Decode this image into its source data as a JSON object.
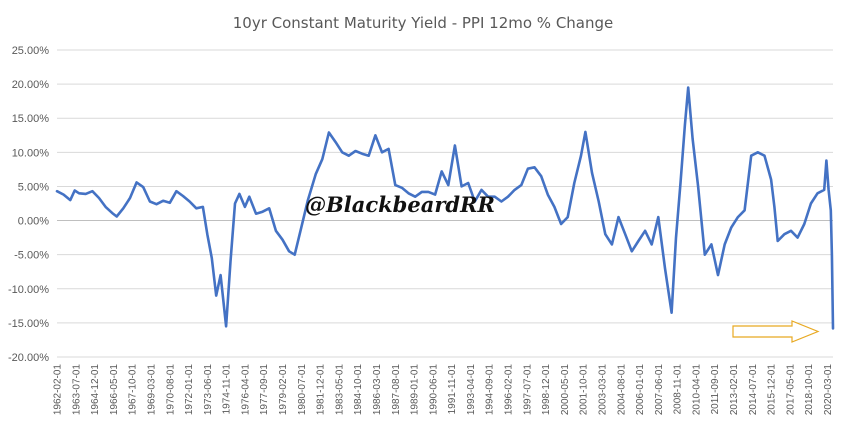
{
  "chart_data": {
    "type": "line",
    "title": "10yr Constant Maturity Yield - PPI 12mo % Change",
    "xlabel": "",
    "ylabel": "",
    "ylim": [
      -20,
      25
    ],
    "y_ticks": [
      "25.00%",
      "20.00%",
      "15.00%",
      "10.00%",
      "5.00%",
      "0.00%",
      "-5.00%",
      "-10.00%",
      "-15.00%",
      "-20.00%"
    ],
    "y_tick_values": [
      25,
      20,
      15,
      10,
      5,
      0,
      -5,
      -10,
      -15,
      -20
    ],
    "x_start": "1962-02",
    "x_end": "2020-08",
    "x_ticks": [
      "1962-02-01",
      "1963-07-01",
      "1964-12-01",
      "1966-05-01",
      "1967-10-01",
      "1969-03-01",
      "1970-08-01",
      "1972-01-01",
      "1973-06-01",
      "1974-11-01",
      "1976-04-01",
      "1977-09-01",
      "1979-02-01",
      "1980-07-01",
      "1981-12-01",
      "1983-05-01",
      "1984-10-01",
      "1986-03-01",
      "1987-08-01",
      "1989-01-01",
      "1990-06-01",
      "1991-11-01",
      "1993-04-01",
      "1994-09-01",
      "1996-02-01",
      "1997-07-01",
      "1998-12-01",
      "2000-05-01",
      "2001-10-01",
      "2003-03-01",
      "2004-08-01",
      "2006-01-01",
      "2007-06-01",
      "2008-11-01",
      "2010-04-01",
      "2011-09-01",
      "2013-02-01",
      "2014-07-01",
      "2015-12-01",
      "2017-05-01",
      "2018-10-01",
      "2020-03-01"
    ],
    "grid": "horizontal",
    "legend": "none",
    "series": [
      {
        "color": "#4472c4",
        "points": [
          [
            "1962-02",
            4.3
          ],
          [
            "1962-08",
            3.8
          ],
          [
            "1963-02",
            3.0
          ],
          [
            "1963-06",
            4.4
          ],
          [
            "1963-10",
            4.0
          ],
          [
            "1964-04",
            3.9
          ],
          [
            "1964-10",
            4.3
          ],
          [
            "1965-04",
            3.3
          ],
          [
            "1965-10",
            2.0
          ],
          [
            "1966-04",
            1.1
          ],
          [
            "1966-08",
            0.6
          ],
          [
            "1967-02",
            1.8
          ],
          [
            "1967-08",
            3.3
          ],
          [
            "1968-02",
            5.6
          ],
          [
            "1968-08",
            4.9
          ],
          [
            "1969-02",
            2.8
          ],
          [
            "1969-08",
            2.4
          ],
          [
            "1970-02",
            2.9
          ],
          [
            "1970-08",
            2.6
          ],
          [
            "1971-02",
            4.3
          ],
          [
            "1971-08",
            3.6
          ],
          [
            "1972-02",
            2.8
          ],
          [
            "1972-08",
            1.8
          ],
          [
            "1973-02",
            2.0
          ],
          [
            "1973-06",
            -2.0
          ],
          [
            "1973-10",
            -5.5
          ],
          [
            "1974-02",
            -11.0
          ],
          [
            "1974-06",
            -8.0
          ],
          [
            "1974-09",
            -12.5
          ],
          [
            "1974-11",
            -15.5
          ],
          [
            "1975-03",
            -6.0
          ],
          [
            "1975-07",
            2.5
          ],
          [
            "1975-11",
            3.9
          ],
          [
            "1976-04",
            2.0
          ],
          [
            "1976-08",
            3.5
          ],
          [
            "1977-02",
            1.0
          ],
          [
            "1977-08",
            1.3
          ],
          [
            "1978-02",
            1.8
          ],
          [
            "1978-08",
            -1.5
          ],
          [
            "1979-02",
            -2.8
          ],
          [
            "1979-08",
            -4.5
          ],
          [
            "1980-01",
            -5.0
          ],
          [
            "1980-07",
            -1.0
          ],
          [
            "1981-01",
            3.0
          ],
          [
            "1981-08",
            6.8
          ],
          [
            "1982-02",
            9.0
          ],
          [
            "1982-08",
            12.9
          ],
          [
            "1983-02",
            11.5
          ],
          [
            "1983-08",
            10.0
          ],
          [
            "1984-02",
            9.5
          ],
          [
            "1984-08",
            10.2
          ],
          [
            "1985-02",
            9.8
          ],
          [
            "1985-08",
            9.5
          ],
          [
            "1986-02",
            12.5
          ],
          [
            "1986-08",
            10.0
          ],
          [
            "1987-02",
            10.5
          ],
          [
            "1987-08",
            5.2
          ],
          [
            "1988-02",
            4.8
          ],
          [
            "1988-08",
            4.0
          ],
          [
            "1989-02",
            3.5
          ],
          [
            "1989-08",
            4.2
          ],
          [
            "1990-02",
            4.2
          ],
          [
            "1990-08",
            3.8
          ],
          [
            "1991-02",
            7.2
          ],
          [
            "1991-08",
            5.2
          ],
          [
            "1992-02",
            11.0
          ],
          [
            "1992-08",
            5.0
          ],
          [
            "1993-02",
            5.5
          ],
          [
            "1993-08",
            2.8
          ],
          [
            "1994-02",
            4.5
          ],
          [
            "1994-08",
            3.5
          ],
          [
            "1995-02",
            3.5
          ],
          [
            "1995-08",
            2.8
          ],
          [
            "1996-02",
            3.5
          ],
          [
            "1996-08",
            4.5
          ],
          [
            "1997-02",
            5.2
          ],
          [
            "1997-08",
            7.6
          ],
          [
            "1998-02",
            7.8
          ],
          [
            "1998-08",
            6.5
          ],
          [
            "1999-02",
            3.8
          ],
          [
            "1999-08",
            2.0
          ],
          [
            "2000-02",
            -0.5
          ],
          [
            "2000-08",
            0.5
          ],
          [
            "2001-02",
            5.5
          ],
          [
            "2001-08",
            9.5
          ],
          [
            "2001-12",
            13.0
          ],
          [
            "2002-06",
            7.0
          ],
          [
            "2002-12",
            2.8
          ],
          [
            "2003-06",
            -2.0
          ],
          [
            "2003-12",
            -3.5
          ],
          [
            "2004-06",
            0.5
          ],
          [
            "2004-12",
            -2.0
          ],
          [
            "2005-06",
            -4.5
          ],
          [
            "2005-12",
            -3.0
          ],
          [
            "2006-06",
            -1.5
          ],
          [
            "2006-12",
            -3.5
          ],
          [
            "2007-06",
            0.5
          ],
          [
            "2007-12",
            -7.0
          ],
          [
            "2008-06",
            -13.5
          ],
          [
            "2008-10",
            -2.5
          ],
          [
            "2009-02",
            5.5
          ],
          [
            "2009-06",
            14.0
          ],
          [
            "2009-09",
            19.5
          ],
          [
            "2010-01",
            12.0
          ],
          [
            "2010-06",
            5.0
          ],
          [
            "2010-12",
            -5.0
          ],
          [
            "2011-06",
            -3.5
          ],
          [
            "2011-12",
            -8.0
          ],
          [
            "2012-06",
            -3.5
          ],
          [
            "2012-12",
            -1.0
          ],
          [
            "2013-06",
            0.5
          ],
          [
            "2013-12",
            1.5
          ],
          [
            "2014-06",
            9.5
          ],
          [
            "2014-12",
            10.0
          ],
          [
            "2015-06",
            9.5
          ],
          [
            "2015-12",
            6.0
          ],
          [
            "2016-03",
            2.0
          ],
          [
            "2016-06",
            -3.0
          ],
          [
            "2016-12",
            -2.0
          ],
          [
            "2017-06",
            -1.5
          ],
          [
            "2017-12",
            -2.5
          ],
          [
            "2018-06",
            -0.5
          ],
          [
            "2018-12",
            2.5
          ],
          [
            "2019-06",
            4.0
          ],
          [
            "2019-12",
            4.5
          ],
          [
            "2020-02",
            8.8
          ],
          [
            "2020-04",
            4.5
          ],
          [
            "2020-06",
            1.5
          ],
          [
            "2020-07",
            -5.0
          ],
          [
            "2020-08",
            -15.8
          ]
        ]
      }
    ],
    "annotations": {
      "watermark": "@BlackbeardRR",
      "arrow_color": "#e8a922"
    }
  }
}
